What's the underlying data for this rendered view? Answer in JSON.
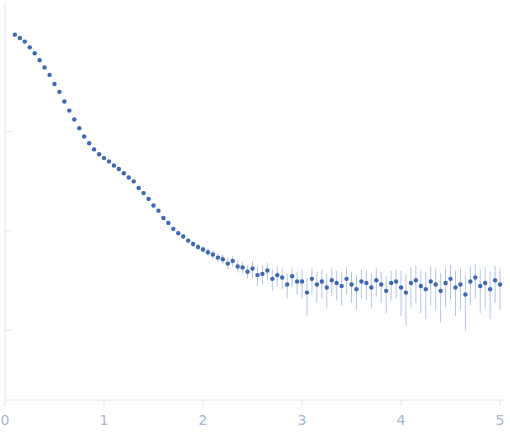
{
  "chart_data": {
    "type": "scatter",
    "log": "y",
    "grid": false,
    "tick_labels": "x",
    "xlim": [
      0,
      5.05
    ],
    "ylim": [
      0.002,
      20
    ],
    "xticks": [
      0,
      1,
      2,
      3,
      4,
      5
    ],
    "yticks": [
      0.01,
      0.1,
      1
    ],
    "x": [
      0.1,
      0.15,
      0.2,
      0.25,
      0.3,
      0.35,
      0.4,
      0.45,
      0.5,
      0.55,
      0.6,
      0.65,
      0.7,
      0.75,
      0.8,
      0.85,
      0.9,
      0.95,
      1.0,
      1.05,
      1.1,
      1.15,
      1.2,
      1.25,
      1.3,
      1.35,
      1.4,
      1.45,
      1.5,
      1.55,
      1.6,
      1.65,
      1.7,
      1.75,
      1.8,
      1.85,
      1.9,
      1.95,
      2.0,
      2.05,
      2.1,
      2.15,
      2.2,
      2.25,
      2.3,
      2.35,
      2.4,
      2.45,
      2.5,
      2.55,
      2.6,
      2.65,
      2.7,
      2.75,
      2.8,
      2.85,
      2.9,
      2.95,
      3.0,
      3.05,
      3.1,
      3.15,
      3.2,
      3.25,
      3.3,
      3.35,
      3.4,
      3.45,
      3.5,
      3.55,
      3.6,
      3.65,
      3.7,
      3.75,
      3.8,
      3.85,
      3.9,
      3.95,
      4.0,
      4.05,
      4.1,
      4.15,
      4.2,
      4.25,
      4.3,
      4.35,
      4.4,
      4.45,
      4.5,
      4.55,
      4.6,
      4.65,
      4.7,
      4.75,
      4.8,
      4.85,
      4.9,
      4.95,
      5.0
    ],
    "series": [
      {
        "color": "#3c68b5",
        "marker": "circle",
        "values": [
          9.4,
          8.7,
          8.0,
          7.0,
          6.1,
          5.2,
          4.4,
          3.7,
          3.0,
          2.5,
          2.0,
          1.62,
          1.32,
          1.08,
          0.89,
          0.76,
          0.66,
          0.59,
          0.54,
          0.5,
          0.455,
          0.42,
          0.38,
          0.345,
          0.315,
          0.27,
          0.24,
          0.21,
          0.18,
          0.16,
          0.135,
          0.12,
          0.105,
          0.095,
          0.088,
          0.08,
          0.074,
          0.069,
          0.065,
          0.061,
          0.058,
          0.054,
          0.052,
          0.047,
          0.05,
          0.044,
          0.043,
          0.039,
          0.042,
          0.036,
          0.037,
          0.04,
          0.033,
          0.036,
          0.034,
          0.029,
          0.035,
          0.031,
          0.031,
          0.024,
          0.033,
          0.029,
          0.031,
          0.027,
          0.032,
          0.03,
          0.028,
          0.033,
          0.029,
          0.026,
          0.031,
          0.03,
          0.027,
          0.032,
          0.029,
          0.025,
          0.03,
          0.031,
          0.027,
          0.024,
          0.03,
          0.032,
          0.028,
          0.026,
          0.031,
          0.029,
          0.025,
          0.03,
          0.033,
          0.027,
          0.029,
          0.023,
          0.031,
          0.034,
          0.028,
          0.03,
          0.026,
          0.032,
          0.029
        ],
        "errors": [
          0.05,
          0.04,
          0.04,
          0.03,
          0.03,
          0.025,
          0.02,
          0.02,
          0.015,
          0.012,
          0.01,
          0.01,
          0.008,
          0.007,
          0.006,
          0.005,
          0.005,
          0.005,
          0.005,
          0.005,
          0.005,
          0.005,
          0.005,
          0.005,
          0.005,
          0.005,
          0.005,
          0.005,
          0.005,
          0.005,
          0.005,
          0.005,
          0.005,
          0.005,
          0.005,
          0.005,
          0.005,
          0.005,
          0.006,
          0.006,
          0.006,
          0.006,
          0.006,
          0.006,
          0.006,
          0.006,
          0.006,
          0.006,
          0.008,
          0.008,
          0.008,
          0.008,
          0.008,
          0.008,
          0.008,
          0.008,
          0.008,
          0.008,
          0.01,
          0.01,
          0.01,
          0.01,
          0.01,
          0.01,
          0.01,
          0.01,
          0.01,
          0.01,
          0.01,
          0.01,
          0.01,
          0.01,
          0.01,
          0.01,
          0.01,
          0.01,
          0.01,
          0.01,
          0.013,
          0.013,
          0.013,
          0.013,
          0.013,
          0.013,
          0.013,
          0.013,
          0.013,
          0.013,
          0.013,
          0.013,
          0.013,
          0.013,
          0.013,
          0.013,
          0.013,
          0.013,
          0.013,
          0.013,
          0.013
        ]
      }
    ]
  }
}
